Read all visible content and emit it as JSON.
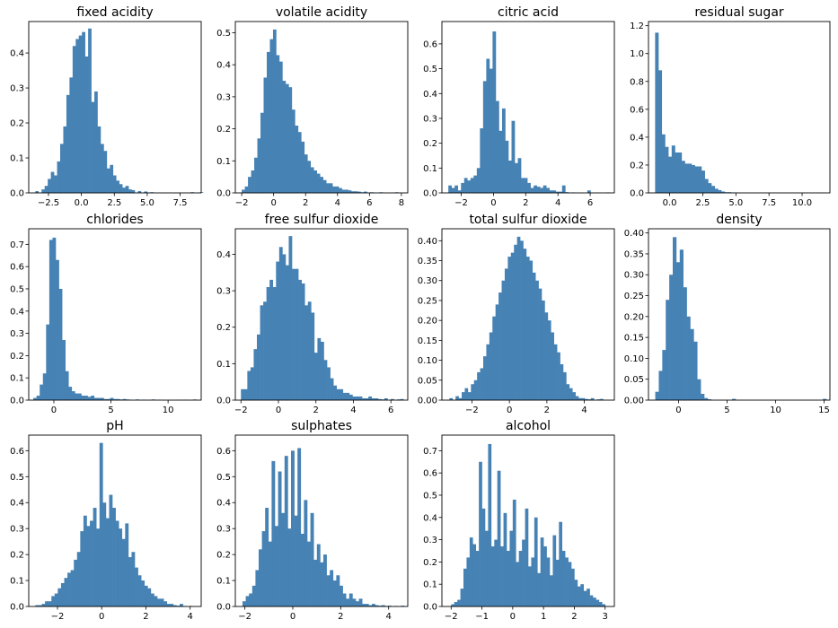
{
  "chart_data": [
    {
      "type": "bar",
      "title": "fixed acidity",
      "xlim": [
        -4.0,
        9.1
      ],
      "ylim": [
        0,
        0.49
      ],
      "xticks": [
        -2.5,
        0,
        2.5,
        5,
        7.5
      ],
      "xtick_labels": [
        "−2.5",
        "0.0",
        "2.5",
        "5.0",
        "7.5"
      ],
      "yticks": [
        0,
        0.1,
        0.2,
        0.3,
        0.4
      ],
      "ytick_labels": [
        "0.0",
        "0.1",
        "0.2",
        "0.3",
        "0.4"
      ],
      "bin_start": -3.5,
      "bin_width": 0.236,
      "values": [
        0.005,
        0.0,
        0.01,
        0.02,
        0.04,
        0.06,
        0.05,
        0.09,
        0.14,
        0.19,
        0.28,
        0.33,
        0.42,
        0.44,
        0.45,
        0.46,
        0.39,
        0.47,
        0.26,
        0.29,
        0.19,
        0.14,
        0.12,
        0.07,
        0.08,
        0.05,
        0.035,
        0.025,
        0.015,
        0.02,
        0.01,
        0.008,
        0.0,
        0.005,
        0.0,
        0.004,
        0.0,
        0.002,
        0.0,
        0.0,
        0.0,
        0.0,
        0.0,
        0.0,
        0.0,
        0.0,
        0.0,
        0.0,
        0.0,
        0.0,
        0.002,
        0.0,
        0.0,
        0.002
      ]
    },
    {
      "type": "bar",
      "title": "volatile acidity",
      "xlim": [
        -2.4,
        8.4
      ],
      "ylim": [
        0,
        0.535
      ],
      "xticks": [
        -2,
        0,
        2,
        4,
        6,
        8
      ],
      "xtick_labels": [
        "−2",
        "0",
        "2",
        "4",
        "6",
        "8"
      ],
      "yticks": [
        0,
        0.1,
        0.2,
        0.3,
        0.4,
        0.5
      ],
      "ytick_labels": [
        "0.0",
        "0.1",
        "0.2",
        "0.3",
        "0.4",
        "0.5"
      ],
      "bin_start": -2.0,
      "bin_width": 0.196,
      "values": [
        0.01,
        0.02,
        0.05,
        0.07,
        0.11,
        0.17,
        0.25,
        0.36,
        0.44,
        0.48,
        0.51,
        0.43,
        0.41,
        0.35,
        0.34,
        0.33,
        0.26,
        0.21,
        0.19,
        0.16,
        0.12,
        0.1,
        0.08,
        0.07,
        0.06,
        0.05,
        0.04,
        0.03,
        0.03,
        0.02,
        0.02,
        0.015,
        0.01,
        0.01,
        0.008,
        0.005,
        0.005,
        0.004,
        0.002,
        0.004,
        0.0,
        0.002,
        0.0,
        0.0,
        0.002,
        0.0,
        0.0,
        0.0,
        0.0,
        0.002
      ]
    },
    {
      "type": "bar",
      "title": "citric acid",
      "xlim": [
        -3.2,
        7.5
      ],
      "ylim": [
        0,
        0.69
      ],
      "xticks": [
        -2,
        0,
        2,
        4,
        6
      ],
      "xtick_labels": [
        "−2",
        "0",
        "2",
        "4",
        "6"
      ],
      "yticks": [
        0,
        0.1,
        0.2,
        0.3,
        0.4,
        0.5,
        0.6
      ],
      "ytick_labels": [
        "0.0",
        "0.1",
        "0.2",
        "0.3",
        "0.4",
        "0.5",
        "0.6"
      ],
      "bin_start": -2.8,
      "bin_width": 0.196,
      "values": [
        0.03,
        0.02,
        0.03,
        0.01,
        0.04,
        0.06,
        0.05,
        0.06,
        0.07,
        0.1,
        0.26,
        0.45,
        0.54,
        0.5,
        0.65,
        0.37,
        0.25,
        0.34,
        0.21,
        0.13,
        0.29,
        0.12,
        0.14,
        0.06,
        0.06,
        0.04,
        0.02,
        0.03,
        0.025,
        0.02,
        0.03,
        0.02,
        0.01,
        0.01,
        0.005,
        0.005,
        0.03,
        0.003,
        0.0,
        0.002,
        0.0,
        0.0,
        0.0,
        0.0,
        0.01,
        0.0,
        0.0,
        0.0,
        0.0,
        0.0,
        0.002
      ]
    },
    {
      "type": "bar",
      "title": "residual sugar",
      "xlim": [
        -1.6,
        12.1
      ],
      "ylim": [
        0,
        1.23
      ],
      "xticks": [
        0,
        2.5,
        5,
        7.5,
        10
      ],
      "xtick_labels": [
        "0.0",
        "2.5",
        "5.0",
        "7.5",
        "10.0"
      ],
      "yticks": [
        0,
        0.2,
        0.4,
        0.6,
        0.8,
        1.0,
        1.2
      ],
      "ytick_labels": [
        "0.0",
        "0.2",
        "0.4",
        "0.6",
        "0.8",
        "1.0",
        "1.2"
      ],
      "bin_start": -1.1,
      "bin_width": 0.25,
      "values": [
        1.15,
        0.88,
        0.42,
        0.33,
        0.26,
        0.34,
        0.29,
        0.29,
        0.23,
        0.21,
        0.21,
        0.2,
        0.19,
        0.19,
        0.16,
        0.1,
        0.07,
        0.05,
        0.03,
        0.02,
        0.01,
        0.005,
        0.005,
        0.003,
        0.002,
        0.001,
        0.0,
        0.0,
        0.0,
        0.0,
        0.0,
        0.0,
        0.0,
        0.0,
        0.0,
        0.0,
        0.0,
        0.0,
        0.0,
        0.0,
        0.0,
        0.0,
        0.0,
        0.0,
        0.0,
        0.0,
        0.0,
        0.0,
        0.0,
        0.001
      ]
    },
    {
      "type": "bar",
      "title": "chlorides",
      "xlim": [
        -2.2,
        12.9
      ],
      "ylim": [
        0,
        0.77
      ],
      "xticks": [
        0,
        5,
        10
      ],
      "xtick_labels": [
        "0",
        "5",
        "10"
      ],
      "yticks": [
        0,
        0.1,
        0.2,
        0.3,
        0.4,
        0.5,
        0.6,
        0.7
      ],
      "ytick_labels": [
        "0.0",
        "0.1",
        "0.2",
        "0.3",
        "0.4",
        "0.5",
        "0.6",
        "0.7"
      ],
      "bin_start": -1.8,
      "bin_width": 0.28,
      "values": [
        0.01,
        0.02,
        0.07,
        0.12,
        0.34,
        0.72,
        0.73,
        0.63,
        0.5,
        0.27,
        0.13,
        0.06,
        0.04,
        0.03,
        0.03,
        0.02,
        0.02,
        0.015,
        0.02,
        0.01,
        0.01,
        0.01,
        0.005,
        0.005,
        0.01,
        0.005,
        0.005,
        0.003,
        0.005,
        0.003,
        0.002,
        0.0,
        0.003,
        0.0,
        0.002,
        0.0,
        0.0,
        0.003,
        0.0,
        0.002,
        0.0,
        0.0,
        0.0,
        0.0,
        0.0,
        0.002,
        0.0,
        0.002,
        0.0,
        0.0,
        0.003
      ]
    },
    {
      "type": "bar",
      "title": "free sulfur dioxide",
      "xlim": [
        -2.3,
        6.9
      ],
      "ylim": [
        0,
        0.47
      ],
      "xticks": [
        -2,
        0,
        2,
        4,
        6
      ],
      "xtick_labels": [
        "−2",
        "0",
        "2",
        "4",
        "6"
      ],
      "yticks": [
        0,
        0.1,
        0.2,
        0.3,
        0.4
      ],
      "ytick_labels": [
        "0.0",
        "0.1",
        "0.2",
        "0.3",
        "0.4"
      ],
      "bin_start": -2.0,
      "bin_width": 0.17,
      "values": [
        0.03,
        0.03,
        0.08,
        0.09,
        0.14,
        0.18,
        0.26,
        0.27,
        0.31,
        0.33,
        0.31,
        0.38,
        0.42,
        0.4,
        0.37,
        0.45,
        0.36,
        0.36,
        0.33,
        0.32,
        0.26,
        0.27,
        0.24,
        0.13,
        0.17,
        0.16,
        0.11,
        0.09,
        0.06,
        0.04,
        0.03,
        0.03,
        0.02,
        0.02,
        0.015,
        0.01,
        0.01,
        0.01,
        0.005,
        0.005,
        0.01,
        0.005,
        0.005,
        0.003,
        0.002,
        0.005,
        0.0,
        0.003,
        0.0,
        0.002,
        0.003
      ]
    },
    {
      "type": "bar",
      "title": "total sulfur dioxide",
      "xlim": [
        -3.6,
        5.6
      ],
      "ylim": [
        0,
        0.43
      ],
      "xticks": [
        -2,
        0,
        2,
        4
      ],
      "xtick_labels": [
        "−2",
        "0",
        "2",
        "4"
      ],
      "yticks": [
        0,
        0.05,
        0.1,
        0.15,
        0.2,
        0.25,
        0.3,
        0.35,
        0.4
      ],
      "ytick_labels": [
        "0.00",
        "0.05",
        "0.10",
        "0.15",
        "0.20",
        "0.25",
        "0.30",
        "0.35",
        "0.40"
      ],
      "bin_start": -3.2,
      "bin_width": 0.164,
      "values": [
        0.005,
        0.0,
        0.01,
        0.005,
        0.02,
        0.03,
        0.02,
        0.04,
        0.05,
        0.07,
        0.08,
        0.11,
        0.14,
        0.17,
        0.21,
        0.24,
        0.27,
        0.3,
        0.33,
        0.36,
        0.37,
        0.39,
        0.41,
        0.4,
        0.38,
        0.36,
        0.35,
        0.32,
        0.3,
        0.28,
        0.25,
        0.22,
        0.2,
        0.17,
        0.14,
        0.12,
        0.09,
        0.07,
        0.04,
        0.03,
        0.02,
        0.01,
        0.005,
        0.005,
        0.003,
        0.002,
        0.005,
        0.0,
        0.002,
        0.003
      ]
    },
    {
      "type": "bar",
      "title": "density",
      "xlim": [
        -3.1,
        15.6
      ],
      "ylim": [
        0,
        0.41
      ],
      "xticks": [
        0,
        5,
        10,
        15
      ],
      "xtick_labels": [
        "0",
        "5",
        "10",
        "15"
      ],
      "yticks": [
        0,
        0.05,
        0.1,
        0.15,
        0.2,
        0.25,
        0.3,
        0.35,
        0.4
      ],
      "ytick_labels": [
        "0.00",
        "0.05",
        "0.10",
        "0.15",
        "0.20",
        "0.25",
        "0.30",
        "0.35",
        "0.40"
      ],
      "bin_start": -2.4,
      "bin_width": 0.36,
      "values": [
        0.02,
        0.07,
        0.12,
        0.24,
        0.3,
        0.39,
        0.33,
        0.36,
        0.27,
        0.2,
        0.17,
        0.14,
        0.05,
        0.015,
        0.005,
        0.002,
        0.0,
        0.0,
        0.0,
        0.0,
        0.0,
        0.0,
        0.003,
        0.0,
        0.0,
        0.0,
        0.0,
        0.0,
        0.0,
        0.0,
        0.0,
        0.0,
        0.0,
        0.0,
        0.0,
        0.0,
        0.0,
        0.0,
        0.0,
        0.0,
        0.0,
        0.0,
        0.0,
        0.0,
        0.0,
        0.0,
        0.0,
        0.0,
        0.003
      ]
    },
    {
      "type": "bar",
      "title": "pH",
      "xlim": [
        -3.3,
        4.5
      ],
      "ylim": [
        0,
        0.66
      ],
      "xticks": [
        -2,
        0,
        2,
        4
      ],
      "xtick_labels": [
        "−2",
        "0",
        "2",
        "4"
      ],
      "yticks": [
        0,
        0.1,
        0.2,
        0.3,
        0.4,
        0.5,
        0.6
      ],
      "ytick_labels": [
        "0.0",
        "0.1",
        "0.2",
        "0.3",
        "0.4",
        "0.5",
        "0.6"
      ],
      "bin_start": -3.0,
      "bin_width": 0.145,
      "values": [
        0.005,
        0.005,
        0.01,
        0.02,
        0.02,
        0.04,
        0.05,
        0.07,
        0.09,
        0.11,
        0.13,
        0.14,
        0.18,
        0.21,
        0.29,
        0.35,
        0.31,
        0.33,
        0.38,
        0.3,
        0.63,
        0.4,
        0.34,
        0.43,
        0.38,
        0.33,
        0.3,
        0.26,
        0.32,
        0.19,
        0.21,
        0.15,
        0.12,
        0.1,
        0.08,
        0.07,
        0.05,
        0.04,
        0.03,
        0.03,
        0.02,
        0.01,
        0.01,
        0.005,
        0.003,
        0.01,
        0.002,
        0.0,
        0.002,
        0.0
      ]
    },
    {
      "type": "bar",
      "title": "sulphates",
      "xlim": [
        -2.4,
        4.8
      ],
      "ylim": [
        0,
        0.66
      ],
      "xticks": [
        -2,
        0,
        2,
        4
      ],
      "xtick_labels": [
        "−2",
        "0",
        "2",
        "4"
      ],
      "yticks": [
        0,
        0.1,
        0.2,
        0.3,
        0.4,
        0.5,
        0.6
      ],
      "ytick_labels": [
        "0.0",
        "0.1",
        "0.2",
        "0.3",
        "0.4",
        "0.5",
        "0.6"
      ],
      "bin_start": -2.1,
      "bin_width": 0.135,
      "values": [
        0.02,
        0.04,
        0.05,
        0.08,
        0.14,
        0.22,
        0.29,
        0.38,
        0.25,
        0.56,
        0.31,
        0.52,
        0.36,
        0.58,
        0.3,
        0.6,
        0.35,
        0.61,
        0.28,
        0.41,
        0.25,
        0.36,
        0.18,
        0.24,
        0.17,
        0.2,
        0.12,
        0.14,
        0.1,
        0.12,
        0.08,
        0.05,
        0.03,
        0.05,
        0.03,
        0.02,
        0.03,
        0.01,
        0.01,
        0.005,
        0.01,
        0.005,
        0.003,
        0.005,
        0.002,
        0.003,
        0.0,
        0.002,
        0.0,
        0.003
      ]
    },
    {
      "type": "bar",
      "title": "alcohol",
      "xlim": [
        -2.3,
        3.3
      ],
      "ylim": [
        0,
        0.77
      ],
      "xticks": [
        -2,
        -1,
        0,
        1,
        2,
        3
      ],
      "xtick_labels": [
        "−2",
        "−1",
        "0",
        "1",
        "2",
        "3"
      ],
      "yticks": [
        0,
        0.1,
        0.2,
        0.3,
        0.4,
        0.5,
        0.6,
        0.7
      ],
      "ytick_labels": [
        "0.0",
        "0.1",
        "0.2",
        "0.3",
        "0.4",
        "0.5",
        "0.6",
        "0.7"
      ],
      "bin_start": -2.0,
      "bin_width": 0.1,
      "values": [
        0.01,
        0.02,
        0.03,
        0.08,
        0.17,
        0.22,
        0.31,
        0.28,
        0.25,
        0.65,
        0.44,
        0.34,
        0.73,
        0.27,
        0.3,
        0.61,
        0.27,
        0.42,
        0.25,
        0.34,
        0.48,
        0.2,
        0.25,
        0.3,
        0.44,
        0.18,
        0.22,
        0.4,
        0.15,
        0.31,
        0.27,
        0.22,
        0.14,
        0.32,
        0.21,
        0.38,
        0.25,
        0.22,
        0.2,
        0.17,
        0.12,
        0.09,
        0.1,
        0.07,
        0.08,
        0.05,
        0.04,
        0.03,
        0.02,
        0.01
      ]
    }
  ]
}
